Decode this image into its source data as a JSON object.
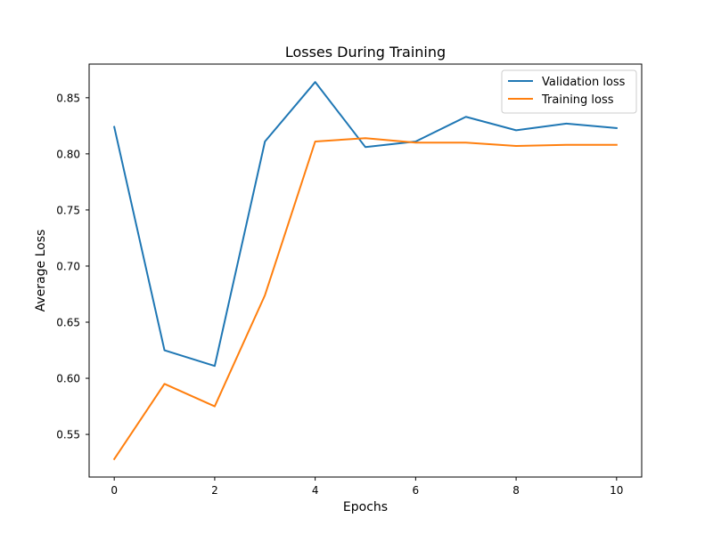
{
  "chart_data": {
    "type": "line",
    "title": "Losses During Training",
    "xlabel": "Epochs",
    "ylabel": "Average Loss",
    "x": [
      0,
      1,
      2,
      3,
      4,
      5,
      6,
      7,
      8,
      9,
      10
    ],
    "xlim": [
      -0.5,
      10.5
    ],
    "ylim": [
      0.512,
      0.88
    ],
    "xticks": [
      0,
      2,
      4,
      6,
      8,
      10
    ],
    "xtick_labels": [
      "0",
      "2",
      "4",
      "6",
      "8",
      "10"
    ],
    "yticks": [
      0.55,
      0.6,
      0.65,
      0.7,
      0.75,
      0.8,
      0.85
    ],
    "ytick_labels": [
      "0.55",
      "0.60",
      "0.65",
      "0.70",
      "0.75",
      "0.80",
      "0.85"
    ],
    "grid": false,
    "legend_position": "top-right",
    "series": [
      {
        "name": "Validation loss",
        "color": "#1f77b4",
        "values": [
          0.824,
          0.625,
          0.611,
          0.811,
          0.864,
          0.806,
          0.811,
          0.833,
          0.821,
          0.827,
          0.823
        ]
      },
      {
        "name": "Training loss",
        "color": "#ff7f0e",
        "values": [
          0.528,
          0.595,
          0.575,
          0.674,
          0.811,
          0.814,
          0.81,
          0.81,
          0.807,
          0.808,
          0.808
        ]
      }
    ]
  }
}
